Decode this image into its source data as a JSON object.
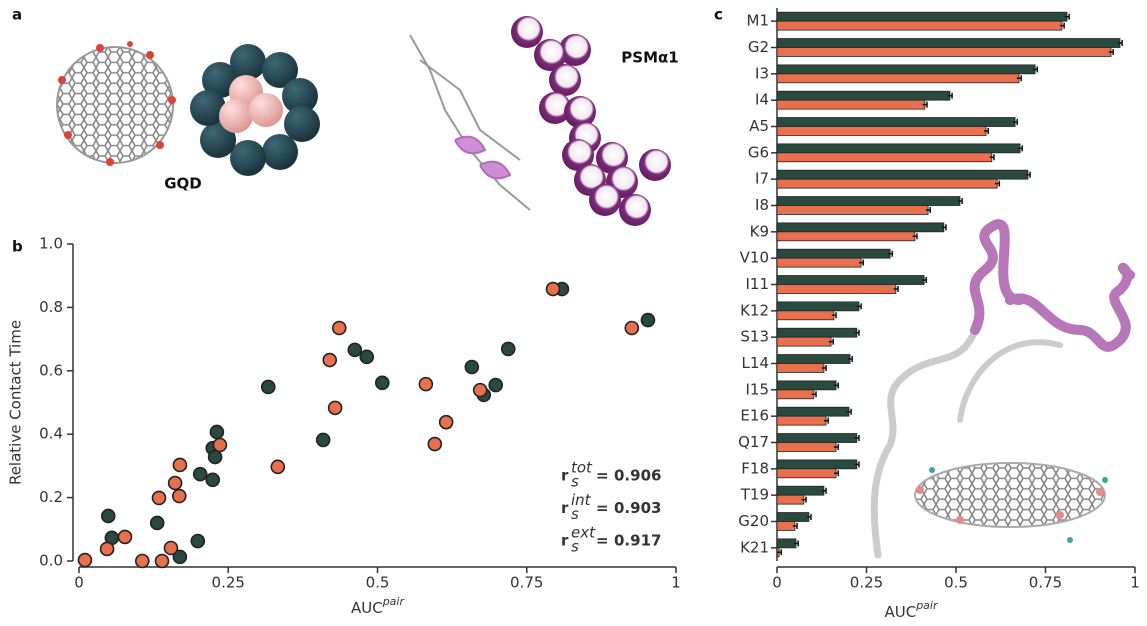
{
  "panel_labels": [
    "a",
    "b",
    "c"
  ],
  "molecules": [
    "GQD",
    "PSMα1"
  ],
  "chart_data": [
    {
      "type": "scatter",
      "x_label": {
        "text": "AUC",
        "sup": "pair"
      },
      "y_label": "Relative Contact Time",
      "xlim": [
        0,
        1
      ],
      "ylim": [
        0,
        1
      ],
      "xticks": [
        0,
        0.25,
        0.5,
        0.75,
        1
      ],
      "yticks": [
        {
          "value": 0,
          "label": "0.0"
        },
        0.2,
        0.4,
        0.6,
        0.8,
        {
          "value": 1,
          "label": "1.0"
        }
      ],
      "series": [
        {
          "color": "#2a4a40",
          "x": [
            0.809,
            0.953,
            0.462,
            0.482,
            0.719,
            0.658,
            0.508,
            0.698,
            0.678,
            0.317,
            0.409,
            0.231,
            0.224,
            0.228,
            0.224,
            0.203,
            0.131,
            0.049,
            0.199,
            0.055,
            0.169
          ],
          "values": [
            0.858,
            0.76,
            0.666,
            0.644,
            0.669,
            0.612,
            0.562,
            0.555,
            0.524,
            0.549,
            0.382,
            0.407,
            0.356,
            0.328,
            0.256,
            0.274,
            0.12,
            0.142,
            0.063,
            0.073,
            0.013
          ]
        },
        {
          "color": "#e8704f",
          "x": [
            0.794,
            0.926,
            0.436,
            0.672,
            0.581,
            0.42,
            0.429,
            0.615,
            0.596,
            0.236,
            0.333,
            0.169,
            0.161,
            0.168,
            0.134,
            0.077,
            0.047,
            0.154,
            0.01,
            0.106,
            0.139
          ],
          "values": [
            0.858,
            0.735,
            0.735,
            0.539,
            0.558,
            0.634,
            0.483,
            0.438,
            0.369,
            0.366,
            0.297,
            0.303,
            0.246,
            0.205,
            0.199,
            0.076,
            0.038,
            0.041,
            0.003,
            0.0,
            0.0
          ]
        }
      ],
      "annotations": [
        {
          "symbol": "r",
          "sub": "s",
          "sup": "tot",
          "op": "=",
          "value": 0.906,
          "color": "#222222"
        },
        {
          "symbol": "r",
          "sub": "s",
          "sup": "int",
          "op": "=",
          "value": 0.903,
          "color": "#2a4a40"
        },
        {
          "symbol": "r",
          "sub": "s",
          "sup": "ext",
          "op": "=",
          "value": 0.917,
          "color": "#e8704f"
        }
      ]
    },
    {
      "type": "barh",
      "x_label": {
        "text": "AUC",
        "sup": "pair"
      },
      "xlim": [
        0,
        1
      ],
      "xticks": [
        0,
        0.25,
        0.5,
        0.75,
        1
      ],
      "categories": [
        "M1",
        "G2",
        "I3",
        "I4",
        "A5",
        "G6",
        "I7",
        "I8",
        "K9",
        "V10",
        "I11",
        "K12",
        "S13",
        "L14",
        "I15",
        "E16",
        "Q17",
        "F18",
        "T19",
        "G20",
        "K21"
      ],
      "series": [
        {
          "color": "#2a4a40",
          "values": [
            0.81,
            0.958,
            0.721,
            0.483,
            0.665,
            0.679,
            0.701,
            0.511,
            0.466,
            0.316,
            0.411,
            0.229,
            0.223,
            0.204,
            0.165,
            0.201,
            0.223,
            0.223,
            0.131,
            0.089,
            0.053
          ],
          "errors": [
            0.006,
            0.006,
            0.006,
            0.006,
            0.006,
            0.006,
            0.006,
            0.006,
            0.006,
            0.006,
            0.006,
            0.006,
            0.006,
            0.006,
            0.006,
            0.006,
            0.006,
            0.006,
            0.006,
            0.006,
            0.006
          ]
        },
        {
          "color": "#e8704f",
          "values": [
            0.796,
            0.933,
            0.676,
            0.413,
            0.584,
            0.6,
            0.615,
            0.422,
            0.385,
            0.235,
            0.332,
            0.159,
            0.151,
            0.131,
            0.103,
            0.137,
            0.165,
            0.165,
            0.075,
            0.05,
            0.006
          ],
          "errors": [
            0.006,
            0.006,
            0.006,
            0.006,
            0.006,
            0.006,
            0.006,
            0.006,
            0.006,
            0.006,
            0.006,
            0.006,
            0.006,
            0.006,
            0.006,
            0.006,
            0.006,
            0.006,
            0.006,
            0.006,
            0.006
          ]
        }
      ]
    }
  ]
}
